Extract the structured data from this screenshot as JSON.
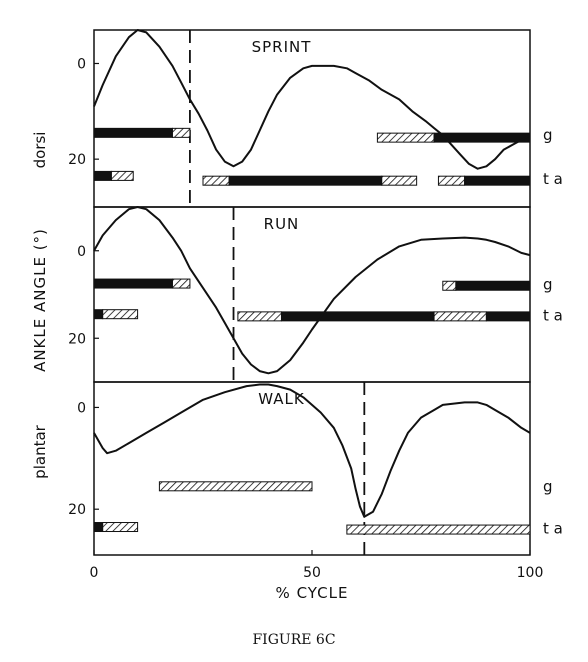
{
  "figure_caption": "FIGURE 6C",
  "chart_data": {
    "type": "line",
    "xlabel": "% CYCLE",
    "ylabel": "ANKLE ANGLE (°)",
    "ylabel_top": "dorsi",
    "ylabel_bottom": "plantar",
    "xlim": [
      0,
      100
    ],
    "x_ticks": [
      "0",
      "50",
      "100"
    ],
    "muscle_labels": {
      "g": "g",
      "ta": "t a"
    },
    "panels": [
      {
        "title": "SPRINT",
        "ylim": [
          -7,
          30
        ],
        "y_ticks": [
          {
            "v": 0,
            "t": "0"
          },
          {
            "v": 20,
            "t": "20"
          }
        ],
        "toe_off": 22,
        "curve": {
          "x": [
            0,
            2,
            5,
            8,
            10,
            12,
            15,
            18,
            20,
            22,
            24,
            26,
            28,
            30,
            32,
            34,
            36,
            38,
            40,
            42,
            45,
            48,
            50,
            55,
            58,
            60,
            63,
            66,
            70,
            73,
            76,
            78,
            80,
            82,
            84,
            86,
            88,
            90,
            92,
            94,
            96,
            98,
            100
          ],
          "y": [
            9,
            4.5,
            -1.5,
            -5.5,
            -7,
            -6.5,
            -3.5,
            0.5,
            4,
            7.5,
            10.5,
            14,
            18,
            20.5,
            21.5,
            20.5,
            18,
            14,
            10,
            6.5,
            3,
            1,
            0.5,
            0.5,
            1,
            2,
            3.5,
            5.5,
            7.5,
            10,
            12,
            13.5,
            15,
            17,
            19,
            21,
            22,
            21.5,
            20,
            18,
            17,
            16,
            15
          ]
        },
        "bars": [
          {
            "muscle": "g",
            "y": 14.5,
            "segs": [
              {
                "s": 0,
                "e": 18,
                "k": "solid"
              },
              {
                "s": 18,
                "e": 22,
                "k": "hatch"
              }
            ]
          },
          {
            "muscle": "g",
            "y": 15.5,
            "segs": [
              {
                "s": 65,
                "e": 78,
                "k": "hatch"
              },
              {
                "s": 78,
                "e": 100,
                "k": "solid"
              }
            ]
          },
          {
            "muscle": "ta",
            "y": 23.5,
            "segs": [
              {
                "s": 0,
                "e": 4,
                "k": "solid"
              },
              {
                "s": 4,
                "e": 9,
                "k": "hatch"
              }
            ]
          },
          {
            "muscle": "ta",
            "y": 24.5,
            "segs": [
              {
                "s": 25,
                "e": 31,
                "k": "hatch"
              },
              {
                "s": 31,
                "e": 66,
                "k": "solid"
              },
              {
                "s": 66,
                "e": 74,
                "k": "hatch"
              }
            ]
          },
          {
            "muscle": "ta",
            "y": 24.5,
            "segs": [
              {
                "s": 79,
                "e": 85,
                "k": "hatch"
              },
              {
                "s": 85,
                "e": 100,
                "k": "solid"
              }
            ]
          }
        ]
      },
      {
        "title": "RUN",
        "ylim": [
          -10,
          30
        ],
        "y_ticks": [
          {
            "v": 0,
            "t": "0"
          },
          {
            "v": 20,
            "t": "20"
          }
        ],
        "toe_off": 32,
        "curve": {
          "x": [
            0,
            2,
            5,
            8,
            10,
            12,
            15,
            18,
            20,
            22,
            25,
            28,
            30,
            32,
            34,
            36,
            38,
            40,
            42,
            45,
            48,
            50,
            55,
            60,
            65,
            70,
            75,
            80,
            85,
            88,
            90,
            92,
            95,
            98,
            100
          ],
          "y": [
            0,
            -3.5,
            -7,
            -9.5,
            -10,
            -9.5,
            -7,
            -3,
            0,
            4,
            8.5,
            13,
            16.5,
            20,
            23.5,
            26,
            27.5,
            28,
            27.5,
            25,
            21,
            18,
            11,
            6,
            2,
            -1,
            -2.5,
            -2.8,
            -3,
            -2.8,
            -2.5,
            -2,
            -1,
            0.5,
            1
          ]
        },
        "bars": [
          {
            "muscle": "g",
            "y": 7.5,
            "segs": [
              {
                "s": 0,
                "e": 18,
                "k": "solid"
              },
              {
                "s": 18,
                "e": 22,
                "k": "hatch"
              }
            ]
          },
          {
            "muscle": "g",
            "y": 8,
            "segs": [
              {
                "s": 80,
                "e": 83,
                "k": "hatch"
              },
              {
                "s": 83,
                "e": 100,
                "k": "solid"
              }
            ]
          },
          {
            "muscle": "ta",
            "y": 14.5,
            "segs": [
              {
                "s": 0,
                "e": 2,
                "k": "solid"
              },
              {
                "s": 2,
                "e": 10,
                "k": "hatch"
              }
            ]
          },
          {
            "muscle": "ta",
            "y": 15,
            "segs": [
              {
                "s": 33,
                "e": 43,
                "k": "hatch"
              },
              {
                "s": 43,
                "e": 78,
                "k": "solid"
              },
              {
                "s": 78,
                "e": 90,
                "k": "hatch"
              },
              {
                "s": 90,
                "e": 100,
                "k": "solid"
              }
            ]
          }
        ]
      },
      {
        "title": "WALK",
        "ylim": [
          -5,
          29
        ],
        "y_ticks": [
          {
            "v": 0,
            "t": "0"
          },
          {
            "v": 20,
            "t": "20"
          }
        ],
        "toe_off": 62,
        "curve": {
          "x": [
            0,
            2,
            3,
            5,
            8,
            12,
            16,
            20,
            25,
            30,
            35,
            38,
            40,
            42,
            45,
            48,
            50,
            52,
            55,
            57,
            59,
            60,
            61,
            62,
            64,
            66,
            68,
            70,
            72,
            75,
            78,
            80,
            85,
            88,
            90,
            92,
            95,
            98,
            100
          ],
          "y": [
            5,
            8,
            9,
            8.5,
            7,
            5,
            3,
            1,
            -1.5,
            -3,
            -4.2,
            -4.5,
            -4.5,
            -4.2,
            -3.5,
            -2,
            -0.5,
            1,
            4,
            7.5,
            12,
            16,
            19.5,
            21.5,
            20.5,
            17,
            12.5,
            8.5,
            5,
            2,
            0.5,
            -0.5,
            -1,
            -1,
            -0.5,
            0.5,
            2,
            4,
            5
          ]
        },
        "bars": [
          {
            "muscle": "g",
            "y": 15.5,
            "segs": [
              {
                "s": 15,
                "e": 50,
                "k": "hatch"
              }
            ]
          },
          {
            "muscle": "ta",
            "y": 23.5,
            "segs": [
              {
                "s": 0,
                "e": 2,
                "k": "solid"
              },
              {
                "s": 2,
                "e": 10,
                "k": "hatch"
              }
            ]
          },
          {
            "muscle": "ta",
            "y": 24,
            "segs": [
              {
                "s": 58,
                "e": 100,
                "k": "hatch"
              }
            ]
          }
        ]
      }
    ]
  }
}
